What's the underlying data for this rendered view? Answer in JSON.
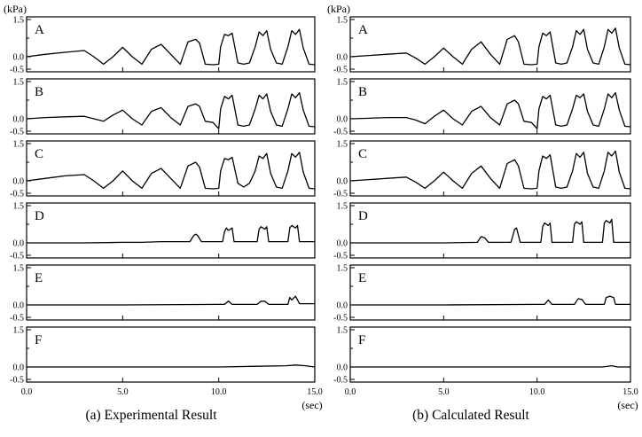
{
  "chart_data": [
    {
      "type": "line",
      "id": "a",
      "caption": "(a)  Experimental Result",
      "y_unit": "(kPa)",
      "x_unit": "(sec)",
      "x_ticks": [
        "0.0",
        "5.0",
        "10.0",
        "15.0"
      ],
      "y_ticks": [
        "1.5",
        "0.0",
        "-0.5"
      ],
      "xlim": [
        0,
        15
      ],
      "ylim": [
        -0.5,
        1.5
      ],
      "panels": [
        {
          "label": "A",
          "x": [
            0,
            1,
            2,
            3,
            3.5,
            4,
            4.5,
            5,
            5.5,
            6,
            6.5,
            7,
            7.5,
            8,
            8.4,
            8.8,
            9,
            9.3,
            9.7,
            10.0,
            10.1,
            10.3,
            10.5,
            10.7,
            11,
            11.3,
            11.6,
            11.9,
            12.1,
            12.3,
            12.5,
            12.7,
            13.0,
            13.3,
            13.6,
            13.8,
            14.0,
            14.2,
            14.4,
            14.7,
            15
          ],
          "values": [
            0.0,
            0.1,
            0.18,
            0.25,
            0.0,
            -0.3,
            0.0,
            0.38,
            0.0,
            -0.3,
            0.3,
            0.5,
            0.1,
            -0.3,
            0.6,
            0.7,
            0.55,
            -0.3,
            -0.32,
            -0.3,
            0.4,
            0.9,
            0.85,
            0.95,
            -0.25,
            -0.3,
            -0.25,
            0.4,
            1.0,
            0.85,
            1.05,
            0.3,
            -0.25,
            -0.3,
            0.4,
            1.05,
            0.9,
            1.1,
            0.35,
            -0.3,
            -0.32
          ]
        },
        {
          "label": "B",
          "x": [
            0,
            1,
            2,
            3,
            3.5,
            4,
            4.5,
            5,
            5.5,
            6,
            6.5,
            7,
            7.5,
            8,
            8.4,
            8.8,
            9,
            9.3,
            9.7,
            10.0,
            10.1,
            10.3,
            10.5,
            10.7,
            11,
            11.3,
            11.6,
            11.9,
            12.1,
            12.3,
            12.5,
            12.7,
            13.0,
            13.3,
            13.6,
            13.8,
            14.0,
            14.2,
            14.4,
            14.7,
            15
          ],
          "values": [
            0.0,
            0.05,
            0.08,
            0.1,
            0.0,
            -0.1,
            0.15,
            0.35,
            0.0,
            -0.25,
            0.3,
            0.45,
            0.05,
            -0.25,
            0.5,
            0.6,
            0.5,
            -0.1,
            -0.15,
            -0.4,
            0.4,
            0.9,
            0.8,
            0.95,
            -0.25,
            -0.3,
            -0.25,
            0.4,
            0.95,
            0.8,
            1.0,
            0.3,
            -0.25,
            -0.3,
            0.4,
            1.0,
            0.85,
            1.05,
            0.35,
            -0.3,
            -0.32
          ]
        },
        {
          "label": "C",
          "x": [
            0,
            1,
            2,
            3,
            3.5,
            4,
            4.5,
            5,
            5.5,
            6,
            6.5,
            7,
            7.5,
            8,
            8.4,
            8.8,
            9,
            9.3,
            9.7,
            10.0,
            10.1,
            10.3,
            10.5,
            10.7,
            11,
            11.3,
            11.6,
            11.9,
            12.1,
            12.3,
            12.5,
            12.7,
            13.0,
            13.3,
            13.6,
            13.8,
            14.0,
            14.2,
            14.4,
            14.7,
            15
          ],
          "values": [
            0.0,
            0.1,
            0.2,
            0.25,
            0.0,
            -0.3,
            0.0,
            0.4,
            0.0,
            -0.3,
            0.3,
            0.5,
            0.1,
            -0.3,
            0.6,
            0.75,
            0.55,
            -0.3,
            -0.32,
            -0.3,
            0.4,
            0.9,
            0.85,
            0.95,
            -0.1,
            -0.25,
            -0.1,
            0.4,
            1.0,
            0.9,
            1.1,
            0.3,
            -0.25,
            -0.3,
            0.4,
            1.1,
            0.95,
            1.15,
            0.35,
            -0.3,
            -0.32
          ]
        },
        {
          "label": "D",
          "x": [
            0,
            3,
            5,
            6,
            7,
            8.5,
            8.7,
            8.8,
            8.9,
            9.1,
            10.2,
            10.3,
            10.4,
            10.5,
            10.7,
            10.8,
            12.0,
            12.1,
            12.2,
            12.4,
            12.5,
            12.6,
            13.6,
            13.7,
            13.8,
            14.0,
            14.1,
            14.2,
            15
          ],
          "values": [
            0.0,
            0.0,
            0.02,
            0.02,
            0.05,
            0.05,
            0.3,
            0.35,
            0.3,
            0.05,
            0.05,
            0.45,
            0.6,
            0.5,
            0.6,
            0.05,
            0.05,
            0.55,
            0.65,
            0.55,
            0.65,
            0.05,
            0.05,
            0.6,
            0.7,
            0.6,
            0.7,
            0.05,
            0.05
          ]
        },
        {
          "label": "E",
          "x": [
            0,
            5,
            10,
            10.3,
            10.5,
            10.7,
            12.0,
            12.2,
            12.4,
            12.6,
            13.6,
            13.7,
            13.8,
            14.0,
            14.2,
            15
          ],
          "values": [
            0.0,
            0.0,
            0.02,
            0.02,
            0.15,
            0.02,
            0.02,
            0.15,
            0.15,
            0.02,
            0.02,
            0.3,
            0.2,
            0.35,
            0.05,
            0.05
          ]
        },
        {
          "label": "F",
          "x": [
            0,
            5,
            10,
            12,
            13.5,
            14,
            14.5,
            15
          ],
          "values": [
            0.0,
            0.0,
            0.0,
            0.03,
            0.05,
            0.08,
            0.05,
            0.0
          ]
        }
      ]
    },
    {
      "type": "line",
      "id": "b",
      "caption": "(b)  Calculated Result",
      "y_unit": "(kPa)",
      "x_unit": "(sec)",
      "x_ticks": [
        "0.0",
        "5.0",
        "10.0",
        "15.0"
      ],
      "y_ticks": [
        "1.5",
        "0.0",
        "-0.5"
      ],
      "xlim": [
        0,
        15
      ],
      "ylim": [
        -0.5,
        1.5
      ],
      "panels": [
        {
          "label": "A",
          "x": [
            0,
            1,
            2,
            3,
            3.5,
            4,
            4.5,
            5,
            5.5,
            6,
            6.5,
            7,
            7.5,
            8,
            8.4,
            8.8,
            9,
            9.3,
            9.7,
            10.0,
            10.1,
            10.3,
            10.5,
            10.7,
            11,
            11.3,
            11.6,
            11.9,
            12.1,
            12.3,
            12.5,
            12.7,
            13.0,
            13.3,
            13.6,
            13.8,
            14.0,
            14.2,
            14.4,
            14.7,
            15
          ],
          "values": [
            0.0,
            0.05,
            0.1,
            0.15,
            -0.05,
            -0.3,
            0.0,
            0.35,
            0.0,
            -0.3,
            0.3,
            0.6,
            0.1,
            -0.3,
            0.7,
            0.85,
            0.6,
            -0.3,
            -0.32,
            -0.3,
            0.4,
            0.95,
            0.85,
            1.0,
            -0.25,
            -0.3,
            -0.25,
            0.4,
            1.05,
            0.9,
            1.1,
            0.3,
            -0.25,
            -0.3,
            0.4,
            1.1,
            0.95,
            1.15,
            0.35,
            -0.3,
            -0.32
          ]
        },
        {
          "label": "B",
          "x": [
            0,
            1,
            2,
            3,
            3.5,
            4,
            4.5,
            5,
            5.5,
            6,
            6.5,
            7,
            7.5,
            8,
            8.4,
            8.8,
            9,
            9.3,
            9.7,
            10.0,
            10.1,
            10.3,
            10.5,
            10.7,
            11,
            11.3,
            11.6,
            11.9,
            12.1,
            12.3,
            12.5,
            12.7,
            13.0,
            13.3,
            13.6,
            13.8,
            14.0,
            14.2,
            14.4,
            14.7,
            15
          ],
          "values": [
            0.0,
            0.02,
            0.05,
            0.05,
            -0.05,
            -0.2,
            0.1,
            0.35,
            0.0,
            -0.25,
            0.3,
            0.5,
            0.05,
            -0.25,
            0.6,
            0.75,
            0.6,
            -0.1,
            -0.15,
            -0.4,
            0.4,
            0.9,
            0.8,
            0.95,
            -0.25,
            -0.3,
            -0.25,
            0.4,
            0.95,
            0.85,
            1.0,
            0.3,
            -0.25,
            -0.3,
            0.4,
            1.0,
            0.85,
            1.05,
            0.35,
            -0.3,
            -0.32
          ]
        },
        {
          "label": "C",
          "x": [
            0,
            1,
            2,
            3,
            3.5,
            4,
            4.5,
            5,
            5.5,
            6,
            6.5,
            7,
            7.5,
            8,
            8.4,
            8.8,
            9,
            9.3,
            9.7,
            10.0,
            10.1,
            10.3,
            10.5,
            10.7,
            11,
            11.3,
            11.6,
            11.9,
            12.1,
            12.3,
            12.5,
            12.7,
            13.0,
            13.3,
            13.6,
            13.8,
            14.0,
            14.2,
            14.4,
            14.7,
            15
          ],
          "values": [
            0.0,
            0.05,
            0.1,
            0.15,
            -0.05,
            -0.3,
            0.0,
            0.35,
            0.0,
            -0.3,
            0.3,
            0.6,
            0.1,
            -0.3,
            0.7,
            0.85,
            0.6,
            -0.3,
            -0.32,
            -0.3,
            0.4,
            1.0,
            0.9,
            1.05,
            -0.25,
            -0.3,
            -0.25,
            0.4,
            1.1,
            0.95,
            1.15,
            0.3,
            -0.25,
            -0.3,
            0.4,
            1.15,
            1.0,
            1.2,
            0.35,
            -0.3,
            -0.32
          ]
        },
        {
          "label": "D",
          "x": [
            0,
            5,
            6.8,
            7.0,
            7.2,
            7.4,
            8.6,
            8.8,
            8.9,
            9.1,
            10.2,
            10.3,
            10.4,
            10.6,
            10.7,
            10.8,
            11.9,
            12.0,
            12.1,
            12.3,
            12.4,
            12.5,
            13.5,
            13.6,
            13.7,
            13.9,
            14.0,
            14.1,
            15
          ],
          "values": [
            0.0,
            0.0,
            0.02,
            0.25,
            0.2,
            0.02,
            0.02,
            0.55,
            0.6,
            0.02,
            0.02,
            0.65,
            0.8,
            0.7,
            0.8,
            0.02,
            0.02,
            0.75,
            0.85,
            0.75,
            0.85,
            0.02,
            0.02,
            0.8,
            0.9,
            0.8,
            0.95,
            0.02,
            0.02
          ]
        },
        {
          "label": "E",
          "x": [
            0,
            5,
            10,
            10.4,
            10.6,
            10.8,
            12.0,
            12.2,
            12.4,
            12.6,
            13.6,
            13.7,
            13.9,
            14.1,
            14.2,
            15
          ],
          "values": [
            0.0,
            0.0,
            0.02,
            0.02,
            0.2,
            0.02,
            0.02,
            0.25,
            0.22,
            0.02,
            0.02,
            0.3,
            0.35,
            0.3,
            0.02,
            0.02
          ]
        },
        {
          "label": "F",
          "x": [
            0,
            5,
            10,
            13.5,
            14,
            14.3,
            15
          ],
          "values": [
            0.0,
            0.0,
            0.0,
            0.0,
            0.05,
            0.0,
            0.0
          ]
        }
      ]
    }
  ]
}
